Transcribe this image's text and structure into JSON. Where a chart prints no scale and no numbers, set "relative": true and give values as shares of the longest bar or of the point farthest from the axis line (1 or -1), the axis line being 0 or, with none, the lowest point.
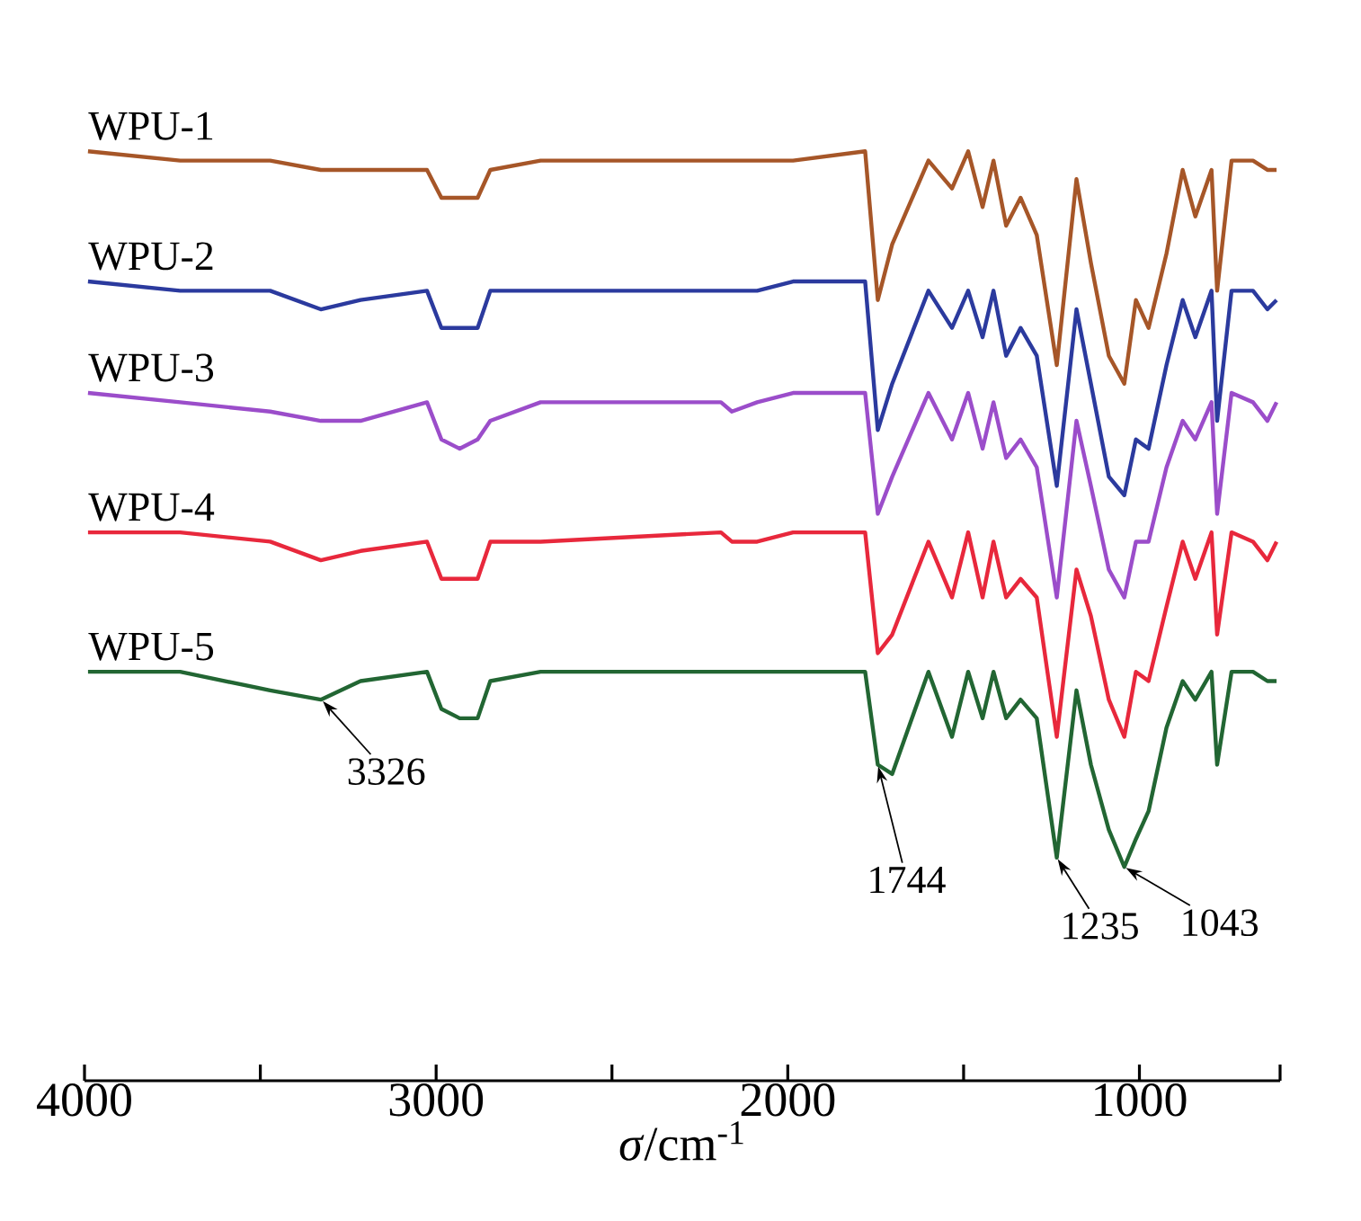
{
  "chart_data": {
    "type": "line",
    "relative": true,
    "x": [
      3990,
      3728,
      3472,
      3328,
      3215,
      3026,
      2985,
      2933,
      2882,
      2846,
      2703,
      2190,
      2159,
      2087,
      1985,
      1780,
      1744,
      1703,
      1600,
      1533,
      1487,
      1446,
      1415,
      1379,
      1338,
      1292,
      1235,
      1179,
      1138,
      1087,
      1043,
      1010,
      974,
      923,
      877,
      841,
      795,
      779,
      738,
      677,
      636,
      610
    ],
    "xlim": [
      4000,
      600
    ],
    "xticks": [
      4000,
      3000,
      2000,
      1000
    ],
    "xlabel": "*σ*/cm$^{-1}$",
    "series": [
      {
        "name": "WPU-1",
        "color": "#a65628",
        "values": [
          1.0,
          0.99,
          0.99,
          0.98,
          0.98,
          0.98,
          0.95,
          0.95,
          0.95,
          0.98,
          0.99,
          0.99,
          0.99,
          0.99,
          0.99,
          1.0,
          0.84,
          0.9,
          0.99,
          0.96,
          1.0,
          0.94,
          0.99,
          0.92,
          0.95,
          0.91,
          0.77,
          0.97,
          0.88,
          0.78,
          0.75,
          0.84,
          0.81,
          0.89,
          0.98,
          0.93,
          0.98,
          0.85,
          0.99,
          0.99,
          0.98,
          0.98
        ]
      },
      {
        "name": "WPU-2",
        "color": "#2b3a9e",
        "values": [
          0.86,
          0.85,
          0.85,
          0.83,
          0.84,
          0.85,
          0.81,
          0.81,
          0.81,
          0.85,
          0.85,
          0.85,
          0.85,
          0.85,
          0.86,
          0.86,
          0.7,
          0.75,
          0.85,
          0.81,
          0.85,
          0.8,
          0.85,
          0.78,
          0.81,
          0.78,
          0.64,
          0.83,
          0.75,
          0.65,
          0.63,
          0.69,
          0.68,
          0.77,
          0.84,
          0.8,
          0.85,
          0.71,
          0.85,
          0.85,
          0.83,
          0.84
        ]
      },
      {
        "name": "WPU-3",
        "color": "#9b4dca",
        "values": [
          0.74,
          0.73,
          0.72,
          0.71,
          0.71,
          0.73,
          0.69,
          0.68,
          0.69,
          0.71,
          0.73,
          0.73,
          0.72,
          0.73,
          0.74,
          0.74,
          0.61,
          0.65,
          0.74,
          0.69,
          0.74,
          0.68,
          0.73,
          0.67,
          0.69,
          0.66,
          0.52,
          0.71,
          0.64,
          0.55,
          0.52,
          0.58,
          0.58,
          0.66,
          0.71,
          0.69,
          0.73,
          0.61,
          0.74,
          0.73,
          0.71,
          0.73
        ]
      },
      {
        "name": "WPU-4",
        "color": "#e8283c",
        "values": [
          0.59,
          0.59,
          0.58,
          0.56,
          0.57,
          0.58,
          0.54,
          0.54,
          0.54,
          0.58,
          0.58,
          0.59,
          0.58,
          0.58,
          0.59,
          0.59,
          0.46,
          0.48,
          0.58,
          0.52,
          0.59,
          0.52,
          0.58,
          0.52,
          0.54,
          0.52,
          0.37,
          0.55,
          0.5,
          0.41,
          0.37,
          0.44,
          0.43,
          0.51,
          0.58,
          0.54,
          0.59,
          0.48,
          0.59,
          0.58,
          0.56,
          0.58
        ]
      },
      {
        "name": "WPU-5",
        "color": "#226633",
        "values": [
          0.44,
          0.44,
          0.42,
          0.41,
          0.43,
          0.44,
          0.4,
          0.39,
          0.39,
          0.43,
          0.44,
          0.44,
          0.44,
          0.44,
          0.44,
          0.44,
          0.34,
          0.33,
          0.44,
          0.37,
          0.44,
          0.39,
          0.44,
          0.39,
          0.41,
          0.39,
          0.24,
          0.42,
          0.34,
          0.27,
          0.23,
          0.26,
          0.29,
          0.38,
          0.43,
          0.41,
          0.44,
          0.34,
          0.44,
          0.44,
          0.43,
          0.43
        ]
      }
    ],
    "annotations": [
      {
        "text": "3326",
        "x": 3326,
        "y": 0.41
      },
      {
        "text": "1744",
        "x": 1744,
        "y": 0.34
      },
      {
        "text": "1235",
        "x": 1235,
        "y": 0.24
      },
      {
        "text": "1043",
        "x": 1043,
        "y": 0.23
      }
    ]
  }
}
